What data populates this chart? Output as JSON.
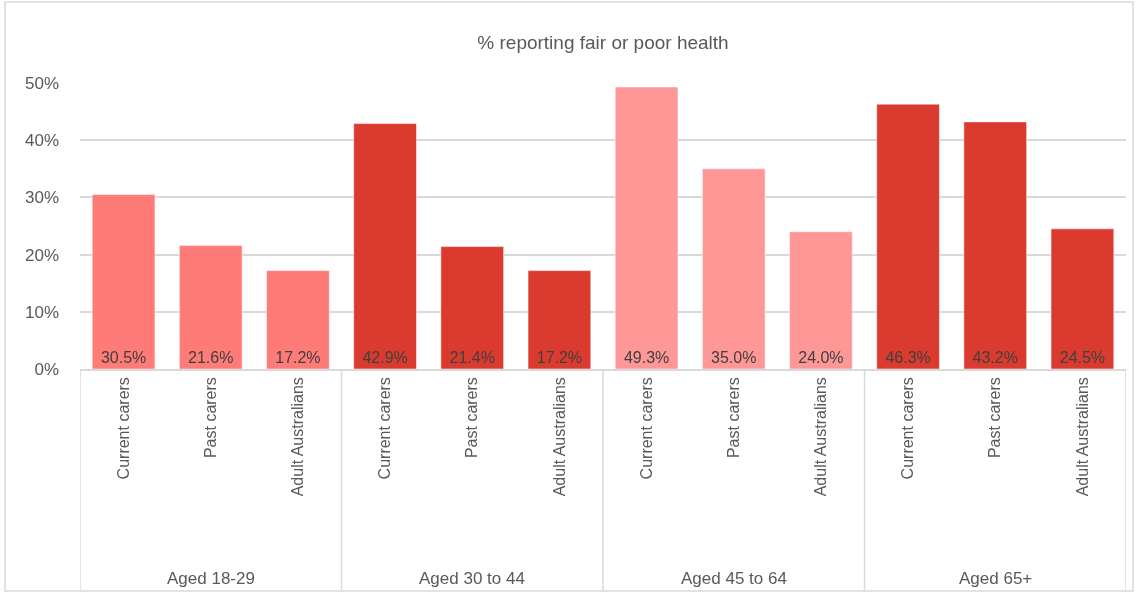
{
  "chart_data": {
    "type": "bar",
    "title": "% reporting fair or poor health",
    "categories": [
      "Current carers",
      "Past carers",
      "Adult Australians",
      "Current carers",
      "Past carers",
      "Adult Australians",
      "Current carers",
      "Past carers",
      "Adult Australians",
      "Current carers",
      "Past carers",
      "Adult Australians"
    ],
    "values": [
      30.5,
      21.6,
      17.2,
      42.9,
      21.4,
      17.2,
      49.3,
      35.0,
      24.0,
      46.3,
      43.2,
      24.5
    ],
    "colors": [
      "#ff7b77",
      "#ff7b77",
      "#ff7b77",
      "#db3b2f",
      "#db3b2f",
      "#db3b2f",
      "#ff9797",
      "#ff9797",
      "#ff9797",
      "#db3b2f",
      "#db3b2f",
      "#db3b2f"
    ],
    "value_labels": [
      "30.5%",
      "21.6%",
      "17.2%",
      "42.9%",
      "21.4%",
      "17.2%",
      "49.3%",
      "35.0%",
      "24.0%",
      "46.3%",
      "43.2%",
      "24.5%"
    ],
    "ylim": [
      0,
      50
    ],
    "yticks": [
      {
        "value": 0,
        "label": "0%"
      },
      {
        "value": 10,
        "label": "10%"
      },
      {
        "value": 20,
        "label": "20%"
      },
      {
        "value": 30,
        "label": "30%"
      },
      {
        "value": 40,
        "label": "40%"
      },
      {
        "value": 50,
        "label": "50%"
      }
    ],
    "grid": "y",
    "annotations": [
      "Aged 18-29",
      "Aged 30 to 44",
      "Aged 45 to 64",
      "Aged 65+"
    ]
  }
}
